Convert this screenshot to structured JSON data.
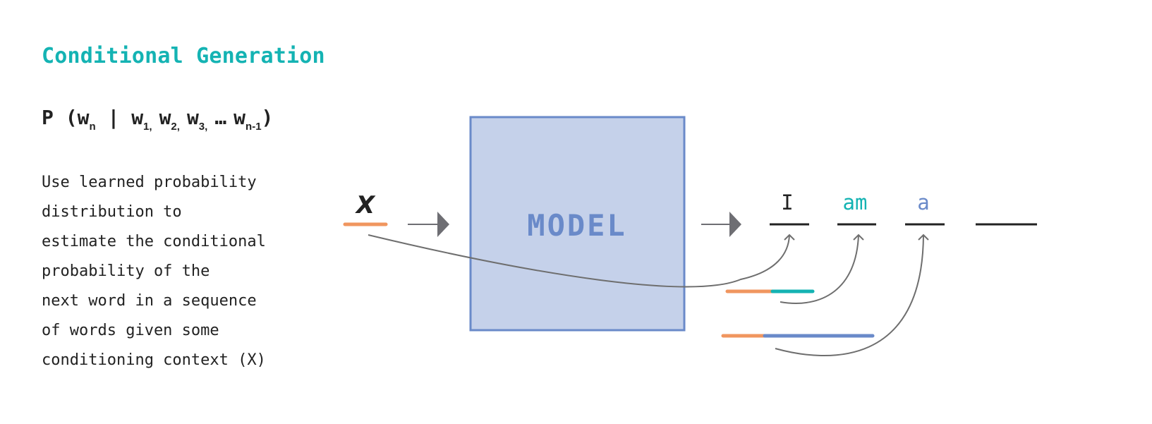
{
  "title": "Conditional Generation",
  "formula": {
    "prefix": "P (w",
    "sub_n": "n",
    "bar": " | ",
    "w1": "w",
    "sub1": "1,",
    "w2": "w",
    "sub2": "2,",
    "w3": "w",
    "sub3": "3,",
    "ellipsis": "…",
    "wlast": "w",
    "sub_last": "n-1",
    "close": ")"
  },
  "description_lines": [
    "Use learned probability",
    "distribution to",
    "estimate the conditional",
    "probability of the",
    "next word in a sequence",
    "of words given some",
    "conditioning context (X)"
  ],
  "diagram": {
    "input_label": "X",
    "model_label": "MODEL",
    "tokens": [
      "I",
      "am",
      "a",
      ""
    ],
    "colors": {
      "title": "#14b3b3",
      "orange": "#f0965f",
      "teal": "#14b3b3",
      "blue": "#6a8ac9",
      "box_fill": "#c5d1ea",
      "box_stroke": "#6a8ac9",
      "arrow": "#6e6e73",
      "curve": "#6e6e6e",
      "text": "#222222"
    }
  }
}
